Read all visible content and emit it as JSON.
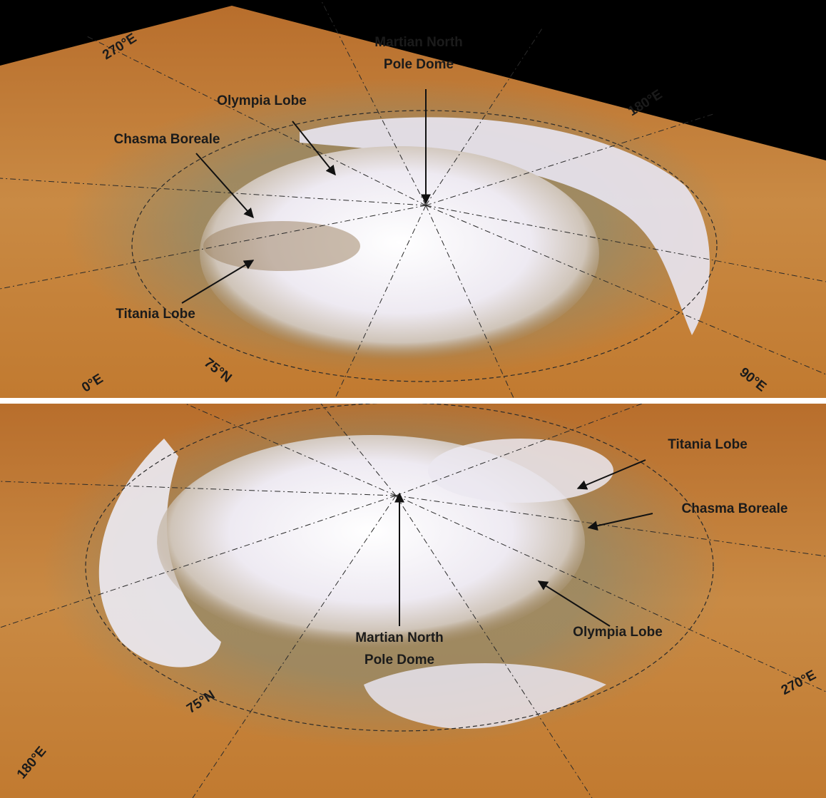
{
  "panels": [
    {
      "labels": [
        {
          "lines": [
            "Martian North",
            "Pole Dome"
          ]
        },
        {
          "lines": [
            "Olympia Lobe"
          ]
        },
        {
          "lines": [
            "Chasma Boreale"
          ]
        },
        {
          "lines": [
            "Titania Lobe"
          ]
        }
      ],
      "coordinates": [
        "270°E",
        "180°E",
        "0°E",
        "75°N",
        "90°E"
      ]
    },
    {
      "labels": [
        {
          "lines": [
            "Titania Lobe"
          ]
        },
        {
          "lines": [
            "Chasma Boreale"
          ]
        },
        {
          "lines": [
            "Olympia Lobe"
          ]
        },
        {
          "lines": [
            "Martian North",
            "Pole Dome"
          ]
        }
      ],
      "coordinates": [
        "75°N",
        "270°E",
        "180°E"
      ]
    }
  ]
}
